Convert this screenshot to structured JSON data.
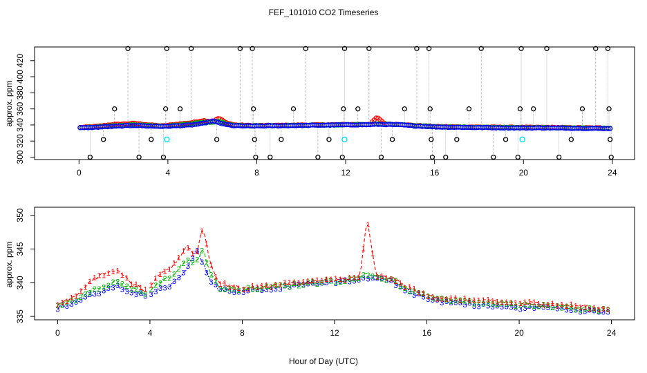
{
  "title": "FEF_101010  CO2 Timeseries",
  "xlabel": "Hour of Day (UTC)",
  "colors": {
    "series1": "#ff0000",
    "series2": "#00b400",
    "series3": "#0000ff",
    "outlier": "#000000",
    "cyan": "#00e5ee",
    "trace": "#999999"
  },
  "chart_data": [
    {
      "type": "scatter",
      "title": "FEF_101010  CO2 Timeseries",
      "ylabel": "approx. ppm",
      "xlabel": "",
      "xlim": [
        -2,
        25
      ],
      "ylim": [
        297,
        437
      ],
      "x_ticks": [
        0,
        4,
        8,
        12,
        16,
        20,
        24
      ],
      "x_tick_labels": [
        "0",
        "4",
        "8",
        "12",
        "16",
        "20",
        "24"
      ],
      "y_ticks": [
        300,
        320,
        340,
        360,
        380,
        400,
        420
      ],
      "y_tick_labels": [
        "300",
        "320",
        "340",
        "360",
        "380",
        "400",
        "420"
      ],
      "outliers": [
        [
          0.5,
          300
        ],
        [
          1.1,
          322
        ],
        [
          1.6,
          360
        ],
        [
          2.2,
          435
        ],
        [
          2.7,
          300
        ],
        [
          3.25,
          322
        ],
        [
          3.8,
          300
        ],
        [
          3.9,
          360
        ],
        [
          3.95,
          435
        ],
        [
          4.55,
          360
        ],
        [
          5.05,
          435
        ],
        [
          6.2,
          322
        ],
        [
          7.25,
          435
        ],
        [
          7.8,
          435
        ],
        [
          7.85,
          360
        ],
        [
          7.9,
          322
        ],
        [
          7.95,
          300
        ],
        [
          8.6,
          300
        ],
        [
          9.1,
          322
        ],
        [
          9.65,
          360
        ],
        [
          10.2,
          435
        ],
        [
          10.75,
          300
        ],
        [
          11.25,
          322
        ],
        [
          11.85,
          300
        ],
        [
          11.9,
          360
        ],
        [
          11.95,
          435
        ],
        [
          12.55,
          360
        ],
        [
          13.05,
          435
        ],
        [
          13.6,
          300
        ],
        [
          14.1,
          322
        ],
        [
          14.65,
          360
        ],
        [
          15.2,
          435
        ],
        [
          15.75,
          435
        ],
        [
          15.8,
          360
        ],
        [
          15.85,
          322
        ],
        [
          15.9,
          300
        ],
        [
          16.5,
          300
        ],
        [
          17.0,
          322
        ],
        [
          17.55,
          360
        ],
        [
          18.1,
          435
        ],
        [
          18.65,
          300
        ],
        [
          19.2,
          322
        ],
        [
          19.75,
          300
        ],
        [
          19.85,
          360
        ],
        [
          19.9,
          435
        ],
        [
          20.45,
          360
        ],
        [
          21.05,
          435
        ],
        [
          21.6,
          300
        ],
        [
          22.15,
          322
        ],
        [
          22.65,
          360
        ],
        [
          23.25,
          435
        ],
        [
          23.8,
          435
        ],
        [
          23.85,
          360
        ],
        [
          23.9,
          322
        ],
        [
          23.95,
          300
        ]
      ],
      "cyan_points": [
        [
          3.95,
          322
        ],
        [
          11.95,
          322
        ],
        [
          19.95,
          322
        ]
      ]
    },
    {
      "type": "line",
      "title": "",
      "ylabel": "approx. ppm",
      "xlabel": "Hour of Day (UTC)",
      "xlim": [
        -1,
        25
      ],
      "ylim": [
        334.5,
        351.2
      ],
      "x_ticks": [
        0,
        4,
        8,
        12,
        16,
        20,
        24
      ],
      "x_tick_labels": [
        "0",
        "4",
        "8",
        "12",
        "16",
        "20",
        "24"
      ],
      "y_ticks": [
        335,
        340,
        345,
        350
      ],
      "y_tick_labels": [
        "335",
        "340",
        "345",
        "350"
      ],
      "anchors": {
        "s1": [
          [
            0,
            336.8
          ],
          [
            0.8,
            338.2
          ],
          [
            1.5,
            340.5
          ],
          [
            2.5,
            342
          ],
          [
            3.2,
            340
          ],
          [
            3.8,
            338.8
          ],
          [
            4.4,
            341
          ],
          [
            5,
            342.5
          ],
          [
            5.6,
            345.5
          ],
          [
            6,
            344
          ],
          [
            6.3,
            348.5
          ],
          [
            6.6,
            343
          ],
          [
            7,
            340
          ],
          [
            7.6,
            339.4
          ],
          [
            8,
            339.2
          ],
          [
            9,
            339.5
          ],
          [
            10,
            339.9
          ],
          [
            11,
            340.2
          ],
          [
            12,
            340.5
          ],
          [
            13.1,
            340.8
          ],
          [
            13.4,
            349.5
          ],
          [
            13.8,
            341
          ],
          [
            14.5,
            340.7
          ],
          [
            15,
            339.6
          ],
          [
            15.7,
            338.6
          ],
          [
            16.1,
            338
          ],
          [
            17,
            337.7
          ],
          [
            18,
            337.4
          ],
          [
            19,
            337.2
          ],
          [
            20,
            337
          ],
          [
            21,
            337
          ],
          [
            22,
            336.7
          ],
          [
            23,
            336.4
          ],
          [
            23.9,
            336.2
          ]
        ],
        "s2": [
          [
            0,
            336.6
          ],
          [
            0.8,
            337.6
          ],
          [
            1.5,
            339
          ],
          [
            2.5,
            340.2
          ],
          [
            3.2,
            339.2
          ],
          [
            3.8,
            338.5
          ],
          [
            4.4,
            340
          ],
          [
            5,
            341
          ],
          [
            5.6,
            343.5
          ],
          [
            6,
            343
          ],
          [
            6.3,
            345
          ],
          [
            6.6,
            341.5
          ],
          [
            7,
            339.3
          ],
          [
            7.6,
            339
          ],
          [
            8,
            339
          ],
          [
            9,
            339.3
          ],
          [
            10,
            339.6
          ],
          [
            11,
            340
          ],
          [
            12,
            340.3
          ],
          [
            13.1,
            340.6
          ],
          [
            13.4,
            341.5
          ],
          [
            13.8,
            340.8
          ],
          [
            14.5,
            340.5
          ],
          [
            15,
            339.3
          ],
          [
            15.7,
            338.4
          ],
          [
            16.1,
            337.8
          ],
          [
            17,
            337.4
          ],
          [
            18,
            337.1
          ],
          [
            19,
            336.9
          ],
          [
            20,
            336.7
          ],
          [
            21,
            336.7
          ],
          [
            22,
            336.4
          ],
          [
            23,
            336.1
          ],
          [
            23.9,
            336
          ]
        ],
        "s3": [
          [
            0,
            336.3
          ],
          [
            0.8,
            337.2
          ],
          [
            1.5,
            338.2
          ],
          [
            2.5,
            339.5
          ],
          [
            3.2,
            338.6
          ],
          [
            3.8,
            338.2
          ],
          [
            4.4,
            339
          ],
          [
            5,
            339.8
          ],
          [
            5.6,
            342
          ],
          [
            6,
            345
          ],
          [
            6.3,
            342.8
          ],
          [
            6.6,
            340.5
          ],
          [
            7,
            339
          ],
          [
            7.6,
            338.8
          ],
          [
            8,
            338.8
          ],
          [
            9,
            339.1
          ],
          [
            10,
            339.4
          ],
          [
            11,
            339.8
          ],
          [
            12,
            340.1
          ],
          [
            13.1,
            340.4
          ],
          [
            13.4,
            340.8
          ],
          [
            13.8,
            340.6
          ],
          [
            14.5,
            340.2
          ],
          [
            15,
            339
          ],
          [
            15.7,
            338.1
          ],
          [
            16.1,
            337.5
          ],
          [
            17,
            337.1
          ],
          [
            18,
            336.8
          ],
          [
            19,
            336.5
          ],
          [
            20,
            336.3
          ],
          [
            21,
            336.4
          ],
          [
            22,
            336.1
          ],
          [
            23,
            335.8
          ],
          [
            23.9,
            335.6
          ]
        ]
      },
      "legend_marks": [
        "1",
        "2",
        "3"
      ]
    }
  ]
}
